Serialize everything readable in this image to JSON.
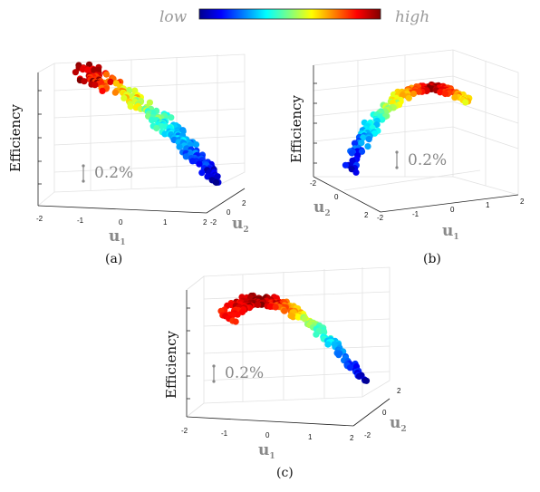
{
  "colorbar": {
    "low_label": "low",
    "high_label": "high",
    "colormap": "jet"
  },
  "chart_data": [
    {
      "type": "scatter",
      "caption": "(a)",
      "ylabel": "Efficiency",
      "x_label": "u",
      "x_sub": "1",
      "z_label": "u",
      "z_sub": "2",
      "scale_label": "0.2%",
      "x_ticks": [
        "-2",
        "-1",
        "0",
        "1",
        "2"
      ],
      "z_ticks": [
        "-2",
        "0",
        "2"
      ]
    },
    {
      "type": "scatter",
      "caption": "(b)",
      "ylabel": "Efficiency",
      "x_label": "u",
      "x_sub": "1",
      "z_label": "u",
      "z_sub": "2",
      "scale_label": "0.2%",
      "x_ticks": [
        "-2",
        "-1",
        "0",
        "1",
        "2"
      ],
      "z_ticks": [
        "2",
        "0",
        "-2"
      ]
    },
    {
      "type": "scatter",
      "caption": "(c)",
      "ylabel": "Efficiency",
      "x_label": "u",
      "x_sub": "1",
      "z_label": "u",
      "z_sub": "2",
      "scale_label": "0.2%",
      "x_ticks": [
        "-2",
        "-1",
        "0",
        "1",
        "2"
      ],
      "z_ticks": [
        "-2",
        "0",
        "2"
      ]
    }
  ]
}
